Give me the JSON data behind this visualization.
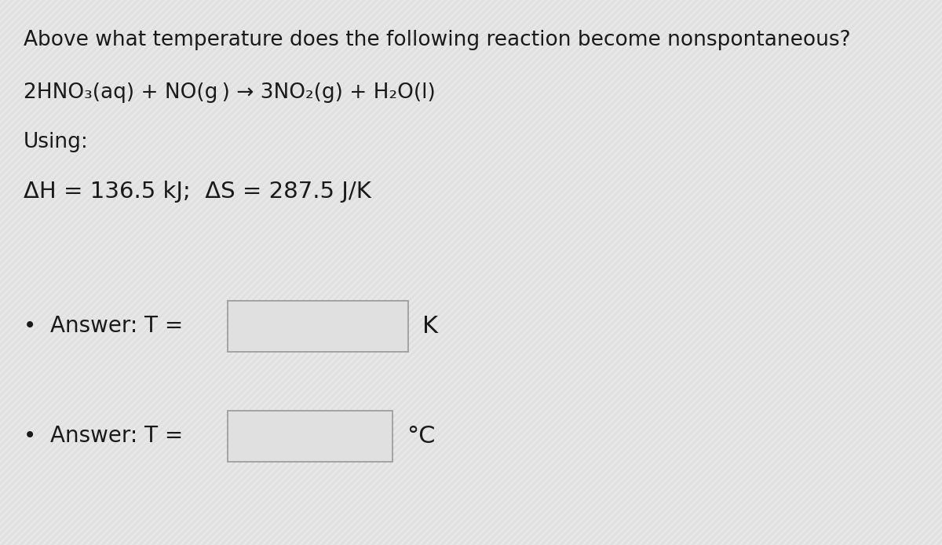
{
  "background_color": "#e8e8e8",
  "text_color": "#1a1a1a",
  "title_line": "Above what temperature does the following reaction become nonspontaneous?",
  "reaction_line": "2HNO₃(aq) + NO(g ) → 3NO₂(g) + H₂O(l)",
  "using_label": "Using:",
  "delta_line": "ΔH = 136.5 kJ;  ΔS = 287.5 J/K",
  "answer1_label": "•  Answer: T =",
  "answer1_suffix": "K",
  "answer2_label": "•  Answer: T =",
  "answer2_suffix": "°C",
  "box_facecolor": "#e0e0e0",
  "box_edgecolor": "#999999",
  "font_size_title": 19,
  "font_size_reaction": 19,
  "font_size_using": 19,
  "font_size_delta": 21,
  "font_size_answer": 20,
  "font_size_unit": 22,
  "stripe_color": "#d8d8d8",
  "stripe_color2": "#e8e8e8"
}
